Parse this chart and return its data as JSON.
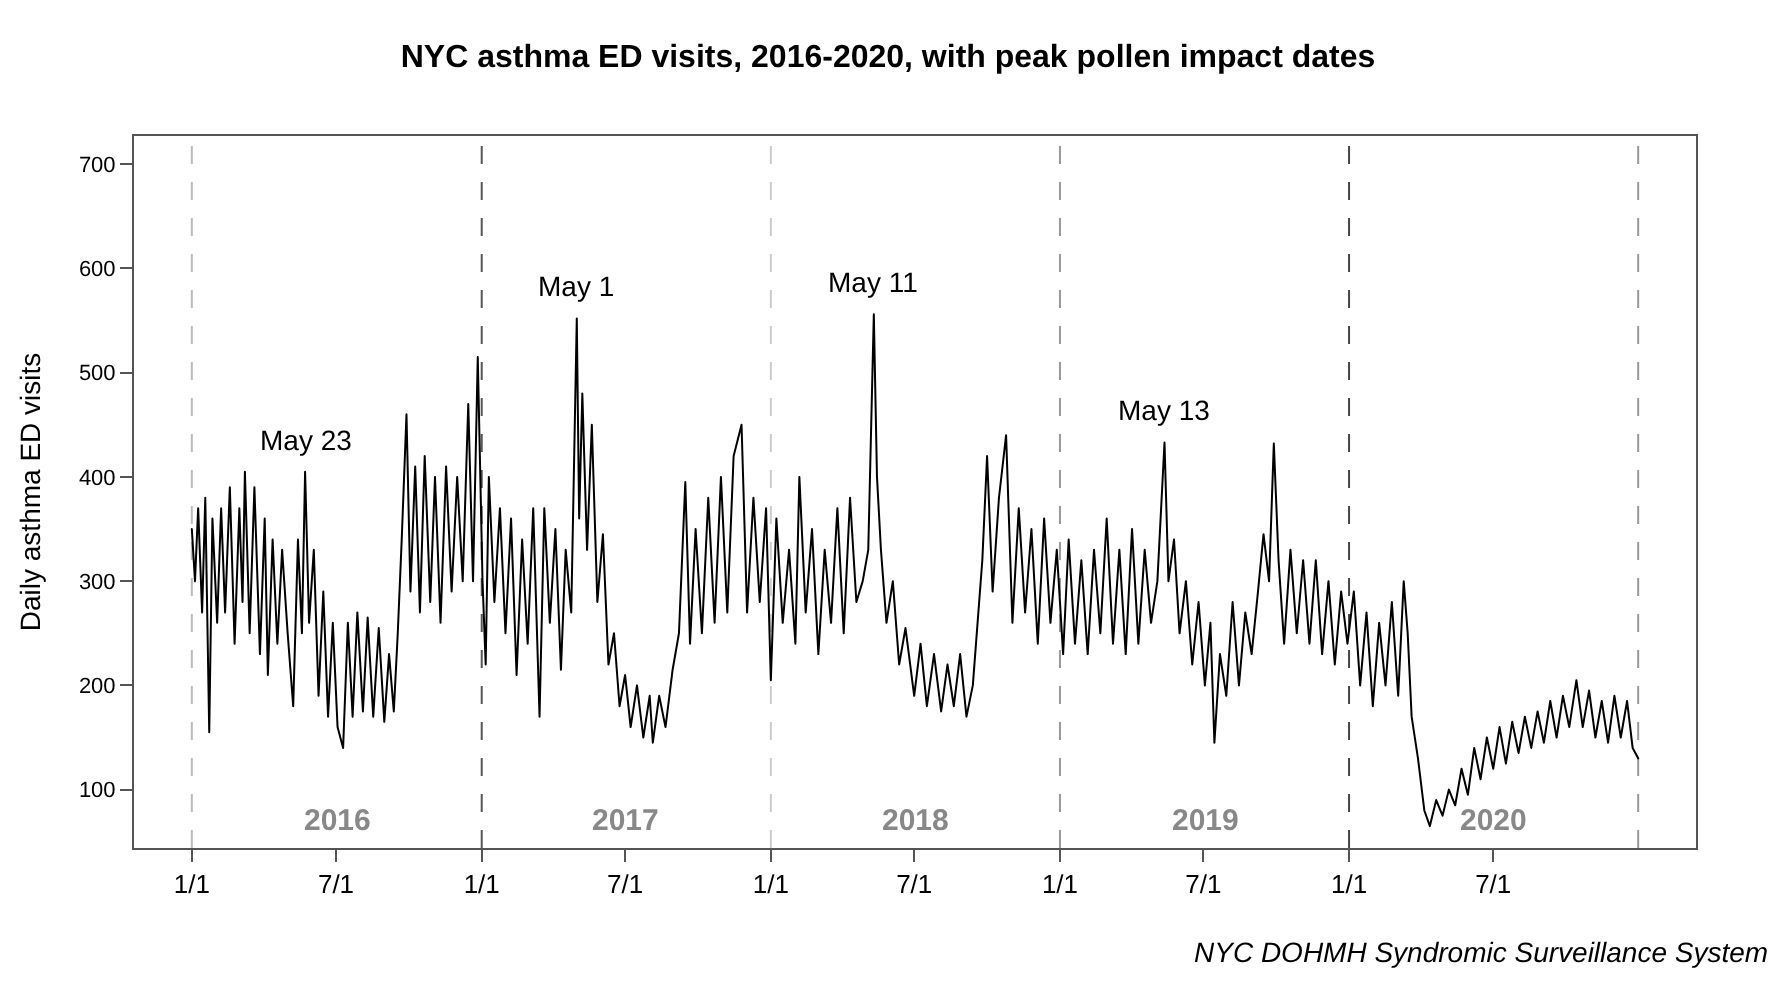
{
  "chart_data": {
    "type": "line",
    "title": "NYC asthma ED visits, 2016-2020, with peak pollen impact dates",
    "ylabel": "Daily asthma ED visits",
    "xlim": [
      "2015-10-20",
      "2021-03-14"
    ],
    "ylim": [
      44,
      727
    ],
    "xticks": [
      {
        "value": "2016-01-01",
        "label": "1/1"
      },
      {
        "value": "2016-07-01",
        "label": "7/1"
      },
      {
        "value": "2017-01-01",
        "label": "1/1"
      },
      {
        "value": "2017-07-01",
        "label": "7/1"
      },
      {
        "value": "2018-01-01",
        "label": "1/1"
      },
      {
        "value": "2018-07-01",
        "label": "7/1"
      },
      {
        "value": "2019-01-01",
        "label": "1/1"
      },
      {
        "value": "2019-07-01",
        "label": "7/1"
      },
      {
        "value": "2020-01-01",
        "label": "1/1"
      },
      {
        "value": "2020-07-01",
        "label": "7/1"
      }
    ],
    "yticks": [
      100,
      200,
      300,
      400,
      500,
      600,
      700
    ],
    "grid": false,
    "marker": "none",
    "line_style": "solid",
    "series": [
      {
        "color": "#000000",
        "x": [
          "2016-01-01",
          "2016-01-05",
          "2016-01-09",
          "2016-01-14",
          "2016-01-18",
          "2016-01-23",
          "2016-01-27",
          "2016-02-02",
          "2016-02-07",
          "2016-02-12",
          "2016-02-18",
          "2016-02-24",
          "2016-03-01",
          "2016-03-05",
          "2016-03-08",
          "2016-03-14",
          "2016-03-20",
          "2016-03-27",
          "2016-04-02",
          "2016-04-06",
          "2016-04-12",
          "2016-04-18",
          "2016-04-24",
          "2016-05-01",
          "2016-05-08",
          "2016-05-14",
          "2016-05-19",
          "2016-05-23",
          "2016-05-28",
          "2016-06-03",
          "2016-06-09",
          "2016-06-15",
          "2016-06-21",
          "2016-06-27",
          "2016-07-03",
          "2016-07-10",
          "2016-07-16",
          "2016-07-22",
          "2016-07-28",
          "2016-08-04",
          "2016-08-10",
          "2016-08-17",
          "2016-08-24",
          "2016-08-31",
          "2016-09-06",
          "2016-09-12",
          "2016-09-17",
          "2016-09-22",
          "2016-09-28",
          "2016-10-03",
          "2016-10-09",
          "2016-10-15",
          "2016-10-21",
          "2016-10-28",
          "2016-11-03",
          "2016-11-10",
          "2016-11-17",
          "2016-11-24",
          "2016-12-01",
          "2016-12-08",
          "2016-12-15",
          "2016-12-21",
          "2016-12-27",
          "2017-01-02",
          "2017-01-06",
          "2017-01-10",
          "2017-01-17",
          "2017-01-24",
          "2017-01-31",
          "2017-02-07",
          "2017-02-14",
          "2017-02-21",
          "2017-02-28",
          "2017-03-07",
          "2017-03-15",
          "2017-03-21",
          "2017-03-28",
          "2017-04-04",
          "2017-04-11",
          "2017-04-17",
          "2017-04-24",
          "2017-05-01",
          "2017-05-04",
          "2017-05-08",
          "2017-05-14",
          "2017-05-20",
          "2017-05-27",
          "2017-06-03",
          "2017-06-10",
          "2017-06-17",
          "2017-06-24",
          "2017-07-01",
          "2017-07-08",
          "2017-07-16",
          "2017-07-24",
          "2017-08-01",
          "2017-08-05",
          "2017-08-13",
          "2017-08-21",
          "2017-08-30",
          "2017-09-07",
          "2017-09-15",
          "2017-09-21",
          "2017-09-28",
          "2017-10-06",
          "2017-10-14",
          "2017-10-22",
          "2017-10-30",
          "2017-11-07",
          "2017-11-15",
          "2017-11-25",
          "2017-12-02",
          "2017-12-10",
          "2017-12-18",
          "2017-12-26",
          "2018-01-01",
          "2018-01-08",
          "2018-01-16",
          "2018-01-24",
          "2018-02-01",
          "2018-02-06",
          "2018-02-14",
          "2018-02-22",
          "2018-03-02",
          "2018-03-10",
          "2018-03-18",
          "2018-03-26",
          "2018-04-03",
          "2018-04-11",
          "2018-04-19",
          "2018-04-27",
          "2018-05-04",
          "2018-05-11",
          "2018-05-15",
          "2018-05-20",
          "2018-05-27",
          "2018-06-04",
          "2018-06-12",
          "2018-06-20",
          "2018-07-01",
          "2018-07-09",
          "2018-07-17",
          "2018-07-26",
          "2018-08-04",
          "2018-08-12",
          "2018-08-20",
          "2018-08-28",
          "2018-09-05",
          "2018-09-13",
          "2018-09-25",
          "2018-10-01",
          "2018-10-08",
          "2018-10-16",
          "2018-10-25",
          "2018-11-02",
          "2018-11-10",
          "2018-11-18",
          "2018-11-26",
          "2018-12-04",
          "2018-12-12",
          "2018-12-20",
          "2018-12-28",
          "2019-01-05",
          "2019-01-12",
          "2019-01-20",
          "2019-01-28",
          "2019-02-05",
          "2019-02-13",
          "2019-02-21",
          "2019-03-01",
          "2019-03-09",
          "2019-03-17",
          "2019-03-25",
          "2019-04-02",
          "2019-04-10",
          "2019-04-18",
          "2019-04-26",
          "2019-05-04",
          "2019-05-13",
          "2019-05-18",
          "2019-05-25",
          "2019-06-01",
          "2019-06-09",
          "2019-06-17",
          "2019-06-25",
          "2019-07-03",
          "2019-07-10",
          "2019-07-15",
          "2019-07-22",
          "2019-07-30",
          "2019-08-07",
          "2019-08-15",
          "2019-08-23",
          "2019-08-31",
          "2019-09-08",
          "2019-09-15",
          "2019-09-22",
          "2019-09-28",
          "2019-10-04",
          "2019-10-11",
          "2019-10-19",
          "2019-10-27",
          "2019-11-04",
          "2019-11-12",
          "2019-11-20",
          "2019-11-28",
          "2019-12-06",
          "2019-12-14",
          "2019-12-22",
          "2019-12-30",
          "2020-01-07",
          "2020-01-15",
          "2020-01-23",
          "2020-01-31",
          "2020-02-08",
          "2020-02-16",
          "2020-02-24",
          "2020-03-03",
          "2020-03-10",
          "2020-03-15",
          "2020-03-20",
          "2020-03-28",
          "2020-04-05",
          "2020-04-12",
          "2020-04-20",
          "2020-04-28",
          "2020-05-06",
          "2020-05-14",
          "2020-05-22",
          "2020-05-30",
          "2020-06-07",
          "2020-06-15",
          "2020-06-23",
          "2020-07-01",
          "2020-07-09",
          "2020-07-17",
          "2020-07-25",
          "2020-08-02",
          "2020-08-10",
          "2020-08-18",
          "2020-08-26",
          "2020-09-03",
          "2020-09-11",
          "2020-09-19",
          "2020-09-27",
          "2020-10-05",
          "2020-10-14",
          "2020-10-22",
          "2020-10-30",
          "2020-11-07",
          "2020-11-15",
          "2020-11-23",
          "2020-12-01",
          "2020-12-09",
          "2020-12-17",
          "2020-12-24",
          "2020-12-31"
        ],
        "values": [
          350,
          300,
          370,
          270,
          380,
          155,
          360,
          260,
          370,
          270,
          390,
          240,
          370,
          280,
          405,
          250,
          390,
          230,
          360,
          210,
          340,
          240,
          330,
          250,
          180,
          340,
          250,
          405,
          260,
          330,
          190,
          290,
          170,
          260,
          160,
          140,
          260,
          170,
          270,
          175,
          265,
          170,
          255,
          165,
          230,
          175,
          250,
          340,
          460,
          290,
          410,
          270,
          420,
          280,
          400,
          260,
          410,
          290,
          400,
          300,
          470,
          300,
          515,
          300,
          220,
          400,
          280,
          370,
          250,
          360,
          210,
          340,
          240,
          370,
          170,
          370,
          260,
          350,
          215,
          330,
          270,
          552,
          360,
          480,
          330,
          450,
          280,
          345,
          220,
          250,
          180,
          210,
          160,
          200,
          150,
          190,
          145,
          190,
          160,
          215,
          250,
          395,
          240,
          350,
          250,
          380,
          260,
          400,
          270,
          420,
          450,
          270,
          380,
          280,
          370,
          205,
          360,
          260,
          330,
          240,
          400,
          270,
          350,
          230,
          330,
          260,
          370,
          250,
          380,
          280,
          300,
          330,
          556,
          400,
          330,
          260,
          300,
          220,
          255,
          190,
          240,
          180,
          230,
          175,
          220,
          180,
          230,
          170,
          200,
          320,
          420,
          290,
          380,
          440,
          260,
          370,
          270,
          350,
          240,
          360,
          260,
          330,
          230,
          340,
          240,
          320,
          230,
          330,
          250,
          360,
          240,
          330,
          230,
          350,
          240,
          330,
          260,
          300,
          433,
          300,
          340,
          250,
          300,
          220,
          280,
          200,
          260,
          145,
          230,
          190,
          280,
          200,
          270,
          230,
          290,
          345,
          300,
          432,
          320,
          240,
          330,
          250,
          320,
          240,
          320,
          230,
          300,
          220,
          290,
          240,
          290,
          200,
          270,
          180,
          260,
          200,
          280,
          190,
          300,
          250,
          170,
          130,
          80,
          65,
          90,
          75,
          100,
          85,
          120,
          95,
          140,
          110,
          150,
          120,
          160,
          125,
          165,
          135,
          170,
          140,
          175,
          145,
          185,
          150,
          190,
          160,
          205,
          160,
          195,
          150,
          185,
          145,
          190,
          150,
          185,
          140,
          130
        ]
      }
    ],
    "ref_lines": [
      {
        "axis": "x",
        "value": "2016-01-01",
        "color": "#bbbbbb",
        "line_style": "dashed"
      },
      {
        "axis": "x",
        "value": "2017-01-01",
        "color": "#555555",
        "line_style": "dashed"
      },
      {
        "axis": "x",
        "value": "2018-01-01",
        "color": "#cccccc",
        "line_style": "dashed"
      },
      {
        "axis": "x",
        "value": "2019-01-01",
        "color": "#999999",
        "line_style": "dashed"
      },
      {
        "axis": "x",
        "value": "2020-01-01",
        "color": "#444444",
        "line_style": "dashed"
      },
      {
        "axis": "x",
        "value": "2020-12-31",
        "color": "#999999",
        "line_style": "dashed"
      }
    ],
    "annotations": [
      {
        "text": "May 23",
        "x": "2016-05-23",
        "y": 405
      },
      {
        "text": "May 1",
        "x": "2017-05-01",
        "y": 552
      },
      {
        "text": "May 11",
        "x": "2018-05-11",
        "y": 556
      },
      {
        "text": "May 13",
        "x": "2019-05-13",
        "y": 433
      },
      "2016",
      "2017",
      "2018",
      "2019",
      "2020",
      "NYC DOHMH Syndromic Surveillance System"
    ]
  }
}
